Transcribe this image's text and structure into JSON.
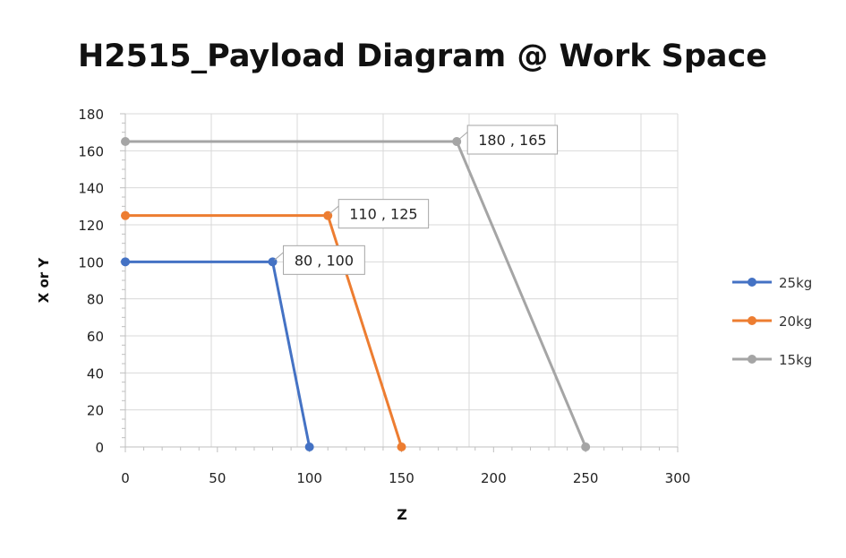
{
  "chart_data": {
    "type": "line",
    "title": "H2515_Payload Diagram @ Work Space",
    "xlabel": "Z",
    "ylabel": "X or Y",
    "xlim": [
      0,
      300
    ],
    "ylim": [
      0,
      180
    ],
    "xticks": [
      "0",
      "50",
      "100",
      "150",
      "200",
      "250",
      "300"
    ],
    "yticks": [
      "0",
      "20",
      "40",
      "60",
      "80",
      "100",
      "120",
      "140",
      "160",
      "180"
    ],
    "grid": true,
    "legend_position": "right",
    "series": [
      {
        "name": "25kg",
        "color": "#4472C4",
        "points": [
          [
            0,
            100
          ],
          [
            80,
            100
          ],
          [
            100,
            0
          ]
        ],
        "label_point": 1,
        "label": "80 , 100"
      },
      {
        "name": "20kg",
        "color": "#ED7D31",
        "points": [
          [
            0,
            125
          ],
          [
            110,
            125
          ],
          [
            150,
            0
          ]
        ],
        "label_point": 1,
        "label": "110 , 125"
      },
      {
        "name": "15kg",
        "color": "#A5A5A5",
        "points": [
          [
            0,
            165
          ],
          [
            180,
            165
          ],
          [
            250,
            0
          ]
        ],
        "label_point": 1,
        "label": "180 , 165"
      }
    ]
  }
}
